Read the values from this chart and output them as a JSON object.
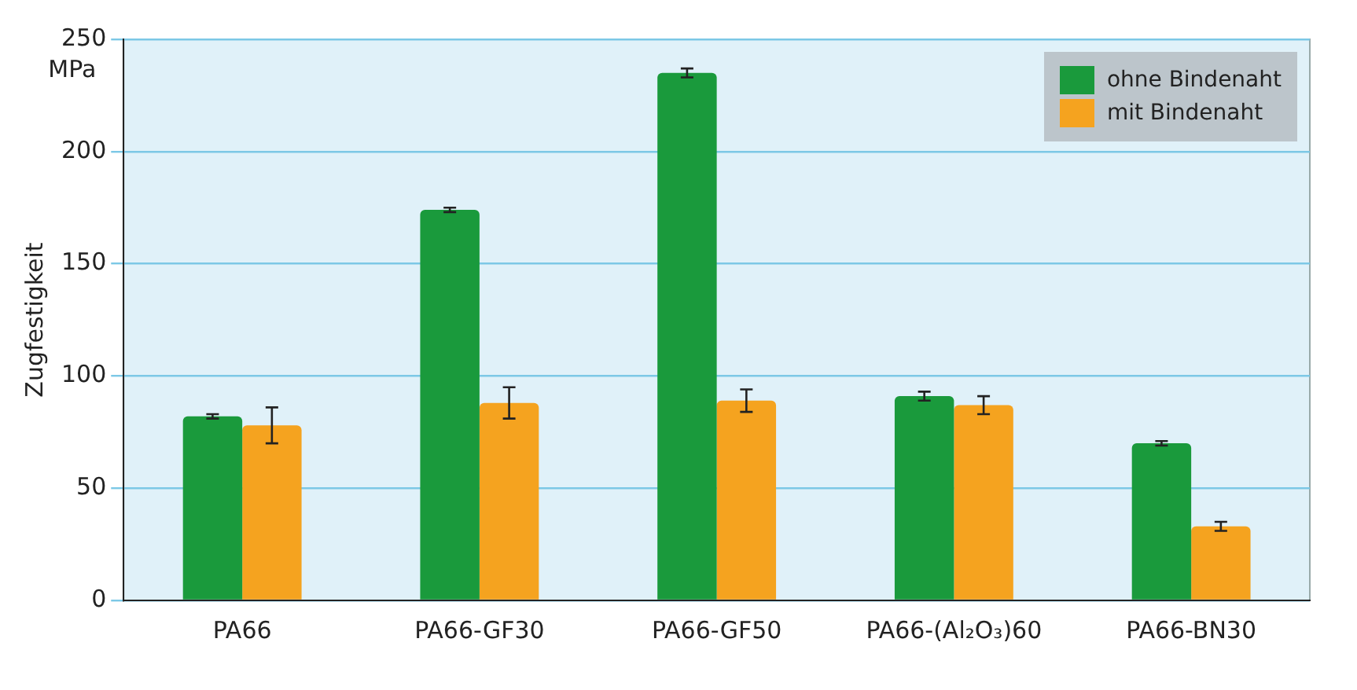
{
  "chart_data": {
    "type": "bar",
    "ylabel": "Zugfestigkeit",
    "annotations": [
      "MPa"
    ],
    "categories": [
      "PA66",
      "PA66-GF30",
      "PA66-GF50",
      "PA66-(Al₂O₃)60",
      "PA66-BN30"
    ],
    "series": [
      {
        "name": "ohne Bindenaht",
        "color": "#1a9a3c",
        "values": [
          82,
          174,
          235,
          91,
          70
        ],
        "errors": [
          1,
          1,
          2,
          2,
          1
        ]
      },
      {
        "name": "mit Bindenaht",
        "color": "#f5a31f",
        "values": [
          78,
          88,
          89,
          87,
          33
        ],
        "errors": [
          8,
          7,
          5,
          4,
          2
        ]
      }
    ],
    "ylim": [
      0,
      250
    ],
    "yticks": [
      0,
      50,
      100,
      150,
      200,
      250
    ],
    "grid": "y",
    "legend": "top right"
  }
}
